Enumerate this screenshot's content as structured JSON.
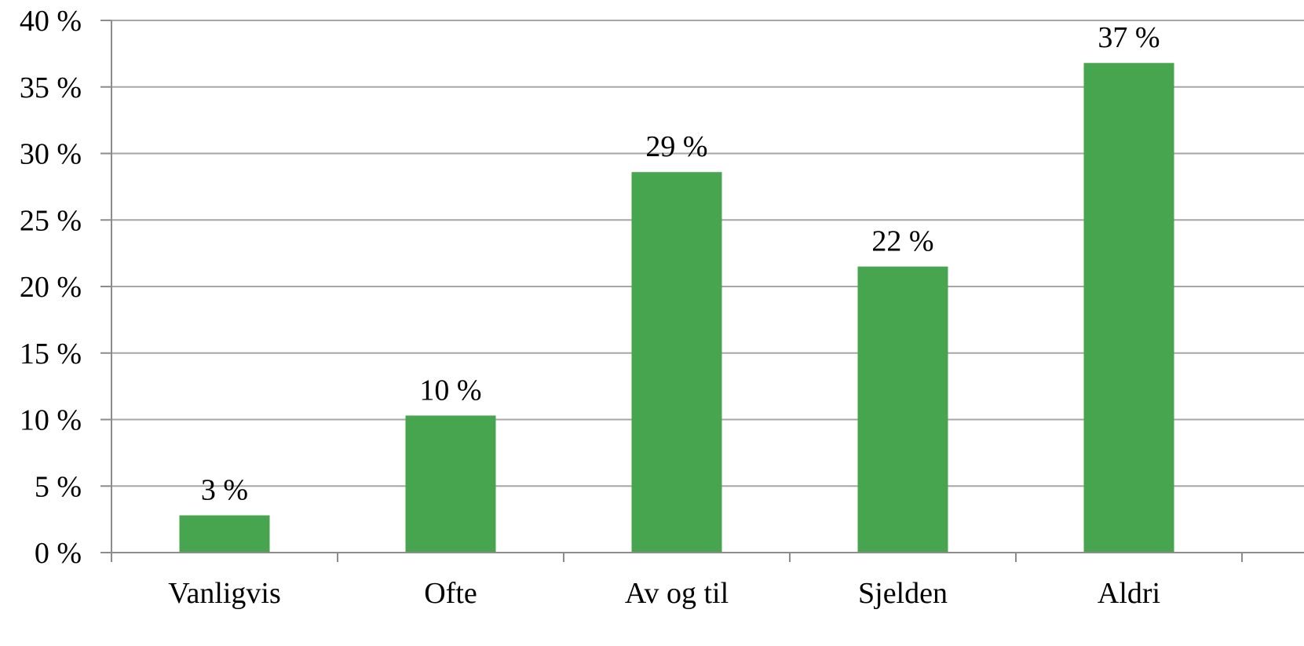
{
  "chart_data": {
    "type": "bar",
    "categories": [
      "Vanligvis",
      "Ofte",
      "Av og til",
      "Sjelden",
      "Aldri"
    ],
    "values": [
      2.8,
      10.3,
      28.6,
      21.5,
      36.8
    ],
    "data_labels": [
      "3 %",
      "10 %",
      "29 %",
      "22 %",
      "37 %"
    ],
    "ylim": [
      0,
      40
    ],
    "y_ticks": [
      0,
      5,
      10,
      15,
      20,
      25,
      30,
      35,
      40
    ],
    "y_tick_labels": [
      "0 %",
      "5 %",
      "10 %",
      "15 %",
      "20 %",
      "25 %",
      "30 %",
      "35 %",
      "40 %"
    ],
    "title": "",
    "xlabel": "",
    "ylabel": "",
    "grid": true,
    "legend": "none",
    "colors": {
      "bar": "#47a54f"
    }
  }
}
